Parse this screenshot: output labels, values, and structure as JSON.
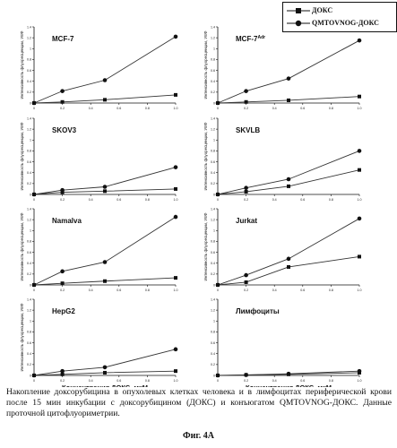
{
  "legend": {
    "items": [
      {
        "label": "ДОКС",
        "marker": "square"
      },
      {
        "label": "QMTOVNOG-ДОКС",
        "marker": "circle"
      }
    ]
  },
  "chart_data": [
    {
      "type": "line",
      "title": "MCF-7",
      "ylabel": "Интенсивность флуоресценции, УЕФ",
      "xlabel": "",
      "x": [
        0,
        0.2,
        0.4,
        0.6,
        0.8,
        1.0
      ],
      "x_ticks": [
        "0",
        "0.2",
        "0.4",
        "0.6",
        "0.8",
        "1.0"
      ],
      "ylim": [
        0,
        1.4
      ],
      "y_ticks": [
        "0",
        "0.2",
        "0.4",
        "0.6",
        "0.8",
        "1",
        "1.2",
        "1.4"
      ],
      "grid": false,
      "series": [
        {
          "name": "ДОКС",
          "x": [
            0,
            0.2,
            0.5,
            1.0
          ],
          "values": [
            0.0,
            0.02,
            0.06,
            0.15
          ]
        },
        {
          "name": "QMTOVNOG-ДОКС",
          "x": [
            0,
            0.2,
            0.5,
            1.0
          ],
          "values": [
            0.0,
            0.22,
            0.42,
            1.22
          ]
        }
      ]
    },
    {
      "type": "line",
      "title": "MCF-7Adr",
      "ylabel": "Интенсивность флуоресценции, УЕФ",
      "xlabel": "",
      "x": [
        0,
        0.2,
        0.4,
        0.6,
        0.8,
        1.0
      ],
      "x_ticks": [
        "0",
        "0.2",
        "0.4",
        "0.6",
        "0.8",
        "1.0"
      ],
      "ylim": [
        0,
        1.4
      ],
      "y_ticks": [
        "0",
        "0.2",
        "0.4",
        "0.6",
        "0.8",
        "1",
        "1.2",
        "1.4"
      ],
      "grid": false,
      "series": [
        {
          "name": "ДОКС",
          "x": [
            0,
            0.2,
            0.5,
            1.0
          ],
          "values": [
            0.0,
            0.02,
            0.05,
            0.12
          ]
        },
        {
          "name": "QMTOVNOG-ДОКС",
          "x": [
            0,
            0.2,
            0.5,
            1.0
          ],
          "values": [
            0.0,
            0.22,
            0.45,
            1.15
          ]
        }
      ]
    },
    {
      "type": "line",
      "title": "SKOV3",
      "ylabel": "Интенсивность флуоресценции, УЕФ",
      "xlabel": "",
      "x": [
        0,
        0.2,
        0.4,
        0.6,
        0.8,
        1.0
      ],
      "x_ticks": [
        "0",
        "0.2",
        "0.4",
        "0.6",
        "0.8",
        "1.0"
      ],
      "ylim": [
        0,
        1.4
      ],
      "y_ticks": [
        "0",
        "0.2",
        "0.4",
        "0.6",
        "0.8",
        "1",
        "1.2",
        "1.4"
      ],
      "grid": false,
      "series": [
        {
          "name": "ДОКС",
          "x": [
            0,
            0.2,
            0.5,
            1.0
          ],
          "values": [
            0.0,
            0.04,
            0.06,
            0.1
          ]
        },
        {
          "name": "QMTOVNOG-ДОКС",
          "x": [
            0,
            0.2,
            0.5,
            1.0
          ],
          "values": [
            0.0,
            0.08,
            0.14,
            0.5
          ]
        }
      ]
    },
    {
      "type": "line",
      "title": "SKVLB",
      "ylabel": "Интенсивность флуоресценции, УЕФ",
      "xlabel": "",
      "x": [
        0,
        0.2,
        0.4,
        0.6,
        0.8,
        1.0
      ],
      "x_ticks": [
        "0",
        "0.2",
        "0.4",
        "0.6",
        "0.8",
        "1.0"
      ],
      "ylim": [
        0,
        1.4
      ],
      "y_ticks": [
        "0",
        "0.2",
        "0.4",
        "0.6",
        "0.8",
        "1",
        "1.2",
        "1.4"
      ],
      "grid": false,
      "series": [
        {
          "name": "ДОКС",
          "x": [
            0,
            0.2,
            0.5,
            1.0
          ],
          "values": [
            0.0,
            0.05,
            0.15,
            0.45
          ]
        },
        {
          "name": "QMTOVNOG-ДОКС",
          "x": [
            0,
            0.2,
            0.5,
            1.0
          ],
          "values": [
            0.0,
            0.12,
            0.28,
            0.8
          ]
        }
      ]
    },
    {
      "type": "line",
      "title": "Namalva",
      "ylabel": "Интенсивность флуоресценции, УЕФ",
      "xlabel": "",
      "x": [
        0,
        0.2,
        0.4,
        0.6,
        0.8,
        1.0
      ],
      "x_ticks": [
        "0",
        "0.2",
        "0.4",
        "0.6",
        "0.8",
        "1.0"
      ],
      "ylim": [
        0,
        1.4
      ],
      "y_ticks": [
        "0",
        "0.2",
        "0.4",
        "0.6",
        "0.8",
        "1",
        "1.2",
        "1.4"
      ],
      "grid": false,
      "series": [
        {
          "name": "ДОКС",
          "x": [
            0,
            0.2,
            0.5,
            1.0
          ],
          "values": [
            0.0,
            0.03,
            0.07,
            0.13
          ]
        },
        {
          "name": "QMTOVNOG-ДОКС",
          "x": [
            0,
            0.2,
            0.5,
            1.0
          ],
          "values": [
            0.0,
            0.25,
            0.42,
            1.25
          ]
        }
      ]
    },
    {
      "type": "line",
      "title": "Jurkat",
      "ylabel": "Интенсивность флуоресценции, УЕФ",
      "xlabel": "",
      "x": [
        0,
        0.2,
        0.4,
        0.6,
        0.8,
        1.0
      ],
      "x_ticks": [
        "0",
        "0.2",
        "0.4",
        "0.6",
        "0.8",
        "1.0"
      ],
      "ylim": [
        0,
        1.4
      ],
      "y_ticks": [
        "0",
        "0.2",
        "0.4",
        "0.6",
        "0.8",
        "1",
        "1.2",
        "1.4"
      ],
      "grid": false,
      "series": [
        {
          "name": "ДОКС",
          "x": [
            0,
            0.2,
            0.5,
            1.0
          ],
          "values": [
            0.0,
            0.05,
            0.33,
            0.52
          ]
        },
        {
          "name": "QMTOVNOG-ДОКС",
          "x": [
            0,
            0.2,
            0.5,
            1.0
          ],
          "values": [
            0.0,
            0.18,
            0.48,
            1.22
          ]
        }
      ]
    },
    {
      "type": "line",
      "title": "HepG2",
      "ylabel": "Интенсивность флуоресценции, УЕФ",
      "xlabel": "Концентрация ДОКС, мкМ",
      "x": [
        0,
        0.2,
        0.4,
        0.6,
        0.8,
        1.0
      ],
      "x_ticks": [
        "0",
        "0.2",
        "0.4",
        "0.6",
        "0.8",
        "1.0"
      ],
      "ylim": [
        0,
        1.4
      ],
      "y_ticks": [
        "0",
        "0.2",
        "0.4",
        "0.6",
        "0.8",
        "1",
        "1.2",
        "1.4"
      ],
      "grid": false,
      "series": [
        {
          "name": "ДОКС",
          "x": [
            0,
            0.2,
            0.5,
            1.0
          ],
          "values": [
            0.0,
            0.02,
            0.05,
            0.08
          ]
        },
        {
          "name": "QMTOVNOG-ДОКС",
          "x": [
            0,
            0.2,
            0.5,
            1.0
          ],
          "values": [
            0.0,
            0.08,
            0.15,
            0.48
          ]
        }
      ]
    },
    {
      "type": "line",
      "title": "Лимфоциты",
      "ylabel": "",
      "xlabel": "Концентрация ДОКС, мкМ",
      "x": [
        0,
        0.2,
        0.4,
        0.6,
        0.8,
        1.0
      ],
      "x_ticks": [
        "0",
        "0.2",
        "0.4",
        "0.6",
        "0.8",
        "1.0"
      ],
      "ylim": [
        0,
        1.4
      ],
      "y_ticks": [
        "0",
        "0.2",
        "0.4",
        "0.6",
        "0.8",
        "1",
        "1.2",
        "1.4"
      ],
      "grid": false,
      "series": [
        {
          "name": "ДОКС",
          "x": [
            0,
            0.2,
            0.5,
            1.0
          ],
          "values": [
            0.0,
            0.01,
            0.02,
            0.05
          ]
        },
        {
          "name": "QMTOVNOG-ДОКС",
          "x": [
            0,
            0.2,
            0.5,
            1.0
          ],
          "values": [
            0.0,
            0.01,
            0.03,
            0.08
          ]
        }
      ]
    }
  ],
  "caption": "Накопление доксорубицина в опухолевых клетках человека и в лимфоцитах периферической крови после 15 мин инкубации с доксорубицином (ДОКС) и конъюгатом QMTOVNOG-ДОКС. Данные проточной цитофлуориметрии.",
  "figure_label": "Фиг. 4А"
}
